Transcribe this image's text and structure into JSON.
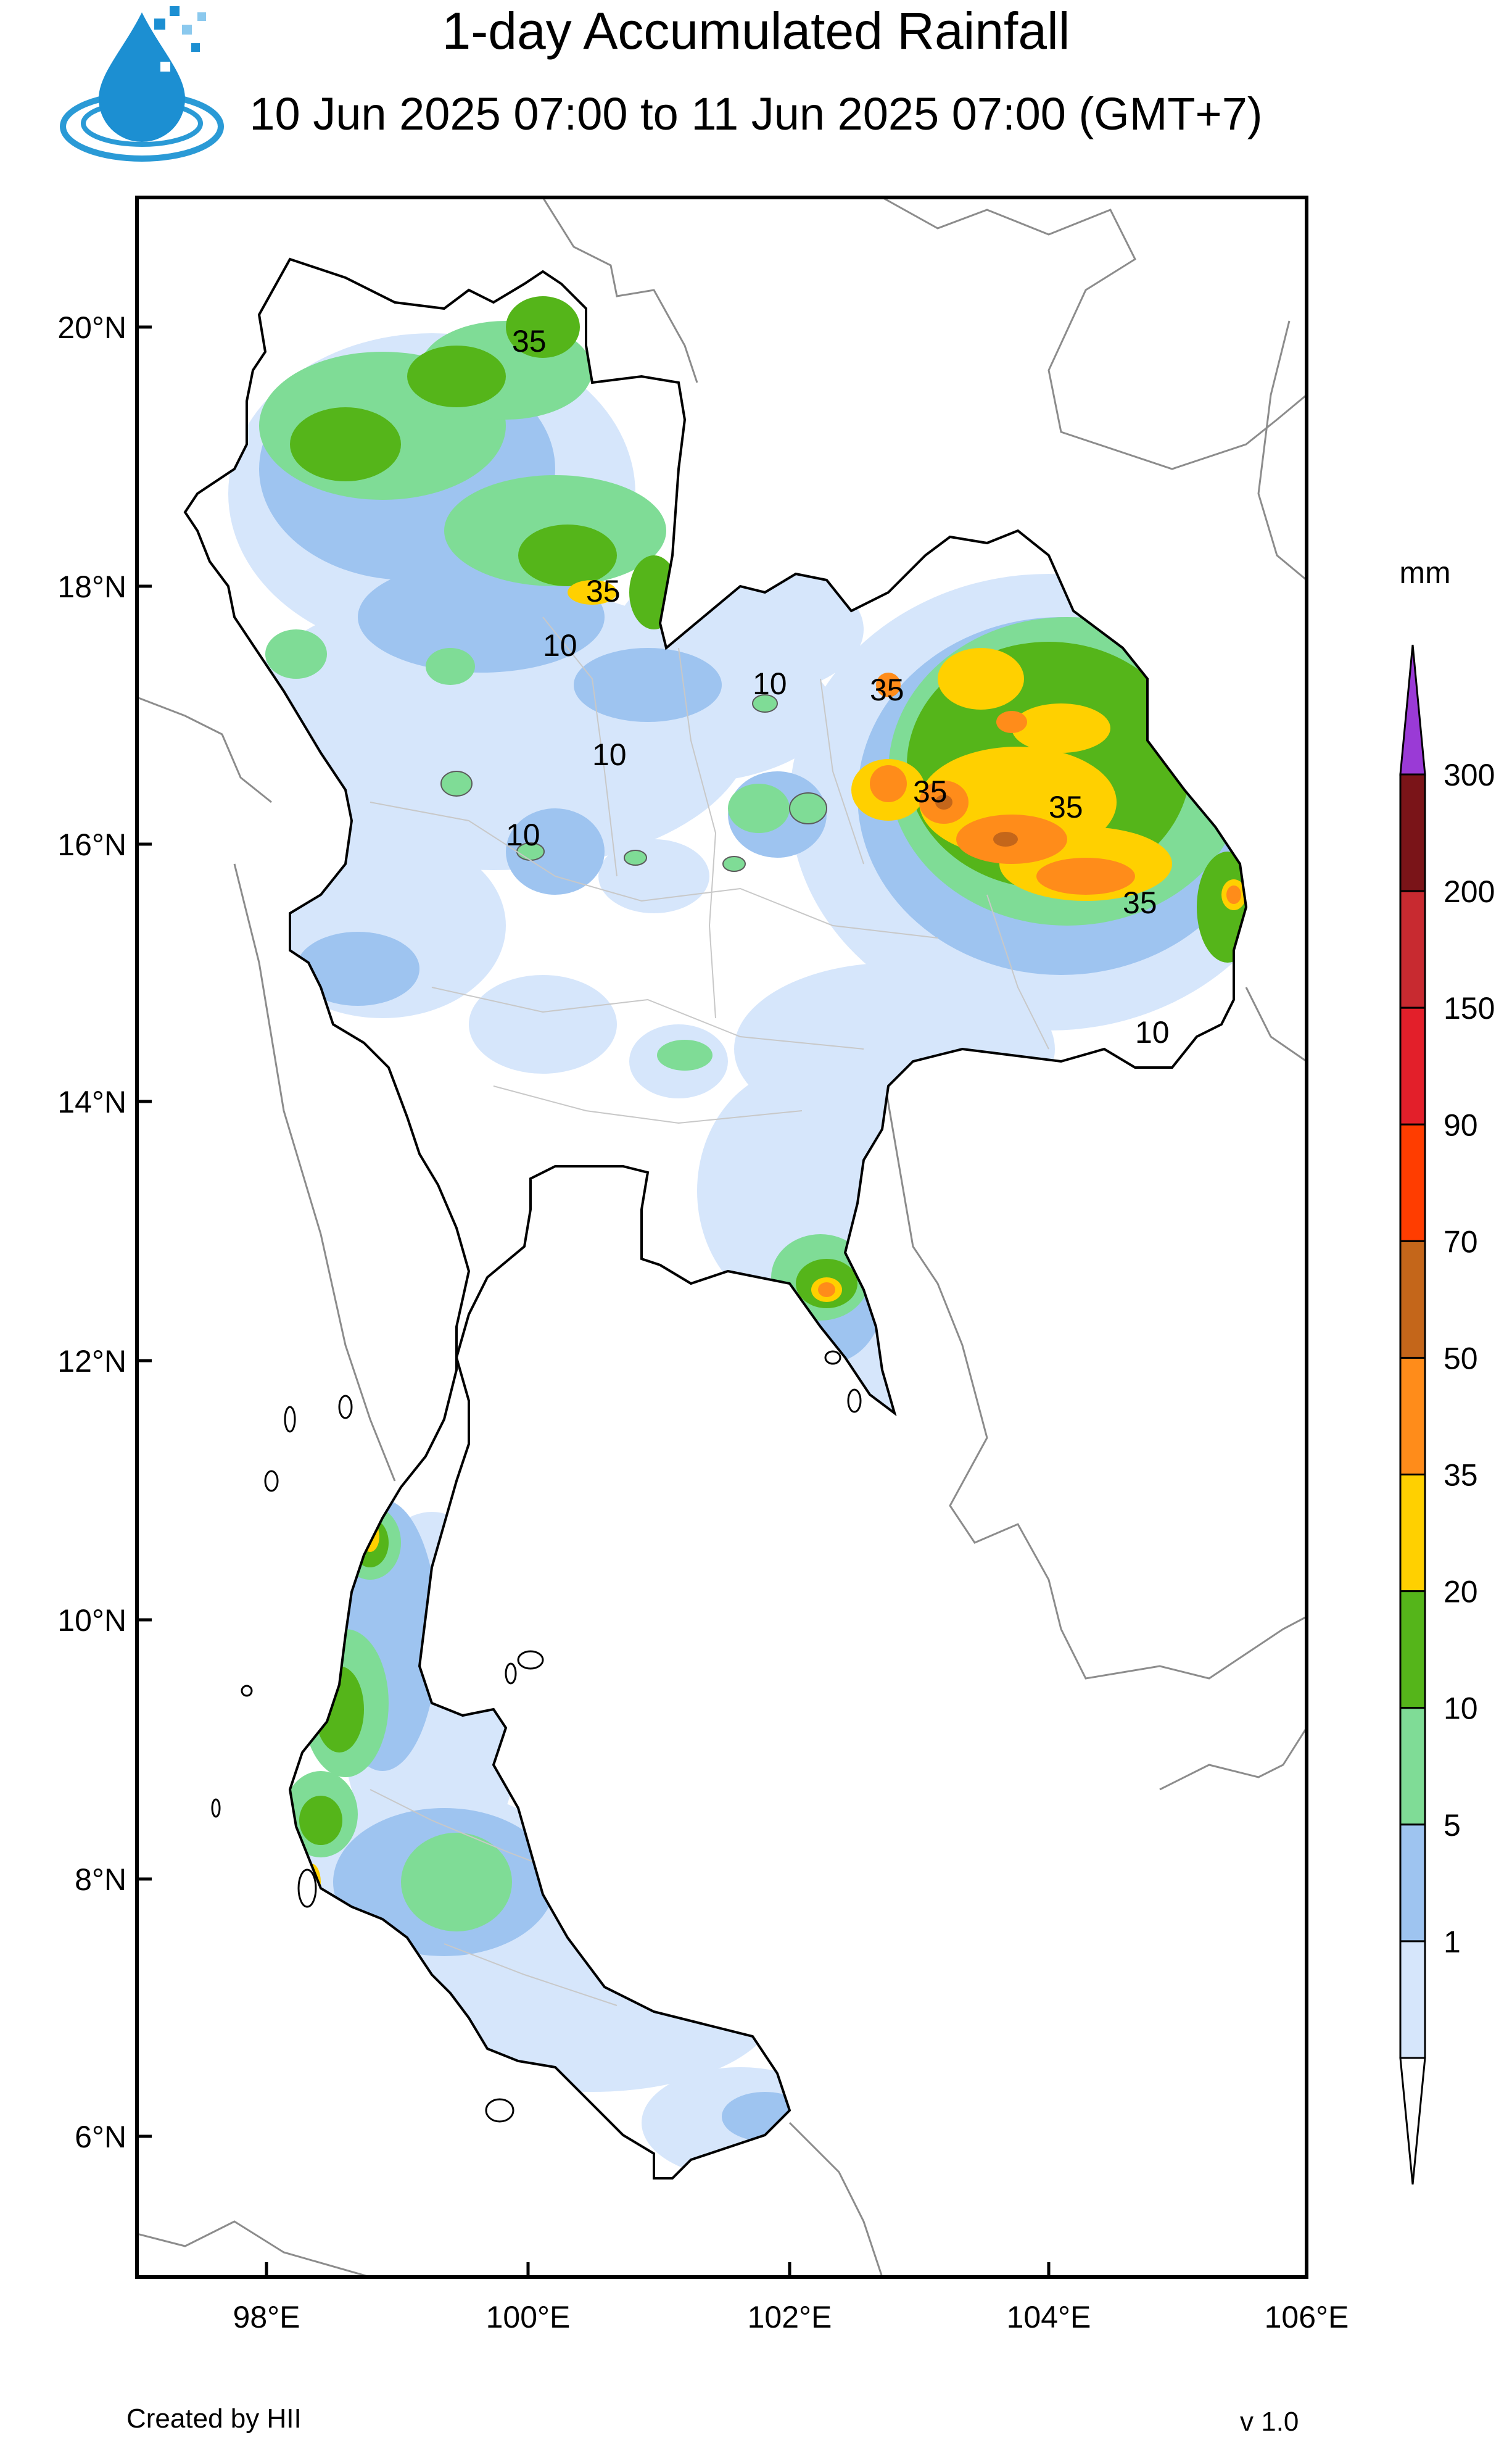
{
  "header": {
    "title": "1-day Accumulated Rainfall",
    "subtitle": "10 Jun 2025 07:00 to 11 Jun 2025 07:00 (GMT+7)"
  },
  "map": {
    "lat_ticks": [
      "20°N",
      "18°N",
      "16°N",
      "14°N",
      "12°N",
      "10°N",
      "8°N",
      "6°N"
    ],
    "lon_ticks": [
      "98°E",
      "100°E",
      "102°E",
      "104°E",
      "106°E"
    ],
    "contour_labels": [
      "10",
      "35"
    ]
  },
  "legend": {
    "unit": "mm",
    "levels": [
      "300",
      "200",
      "150",
      "90",
      "70",
      "50",
      "35",
      "20",
      "10",
      "5",
      "1"
    ],
    "colors": [
      "#9a3ad6",
      "#7a1418",
      "#c82a30",
      "#e31f2a",
      "#ff3d00",
      "#c4661a",
      "#ff8c1a",
      "#ffd000",
      "#55b51a",
      "#7fdc96",
      "#9ec4f0",
      "#d6e6fb",
      "#ffffff"
    ]
  },
  "footer": {
    "credit": "Created by HII",
    "version": "v 1.0"
  }
}
